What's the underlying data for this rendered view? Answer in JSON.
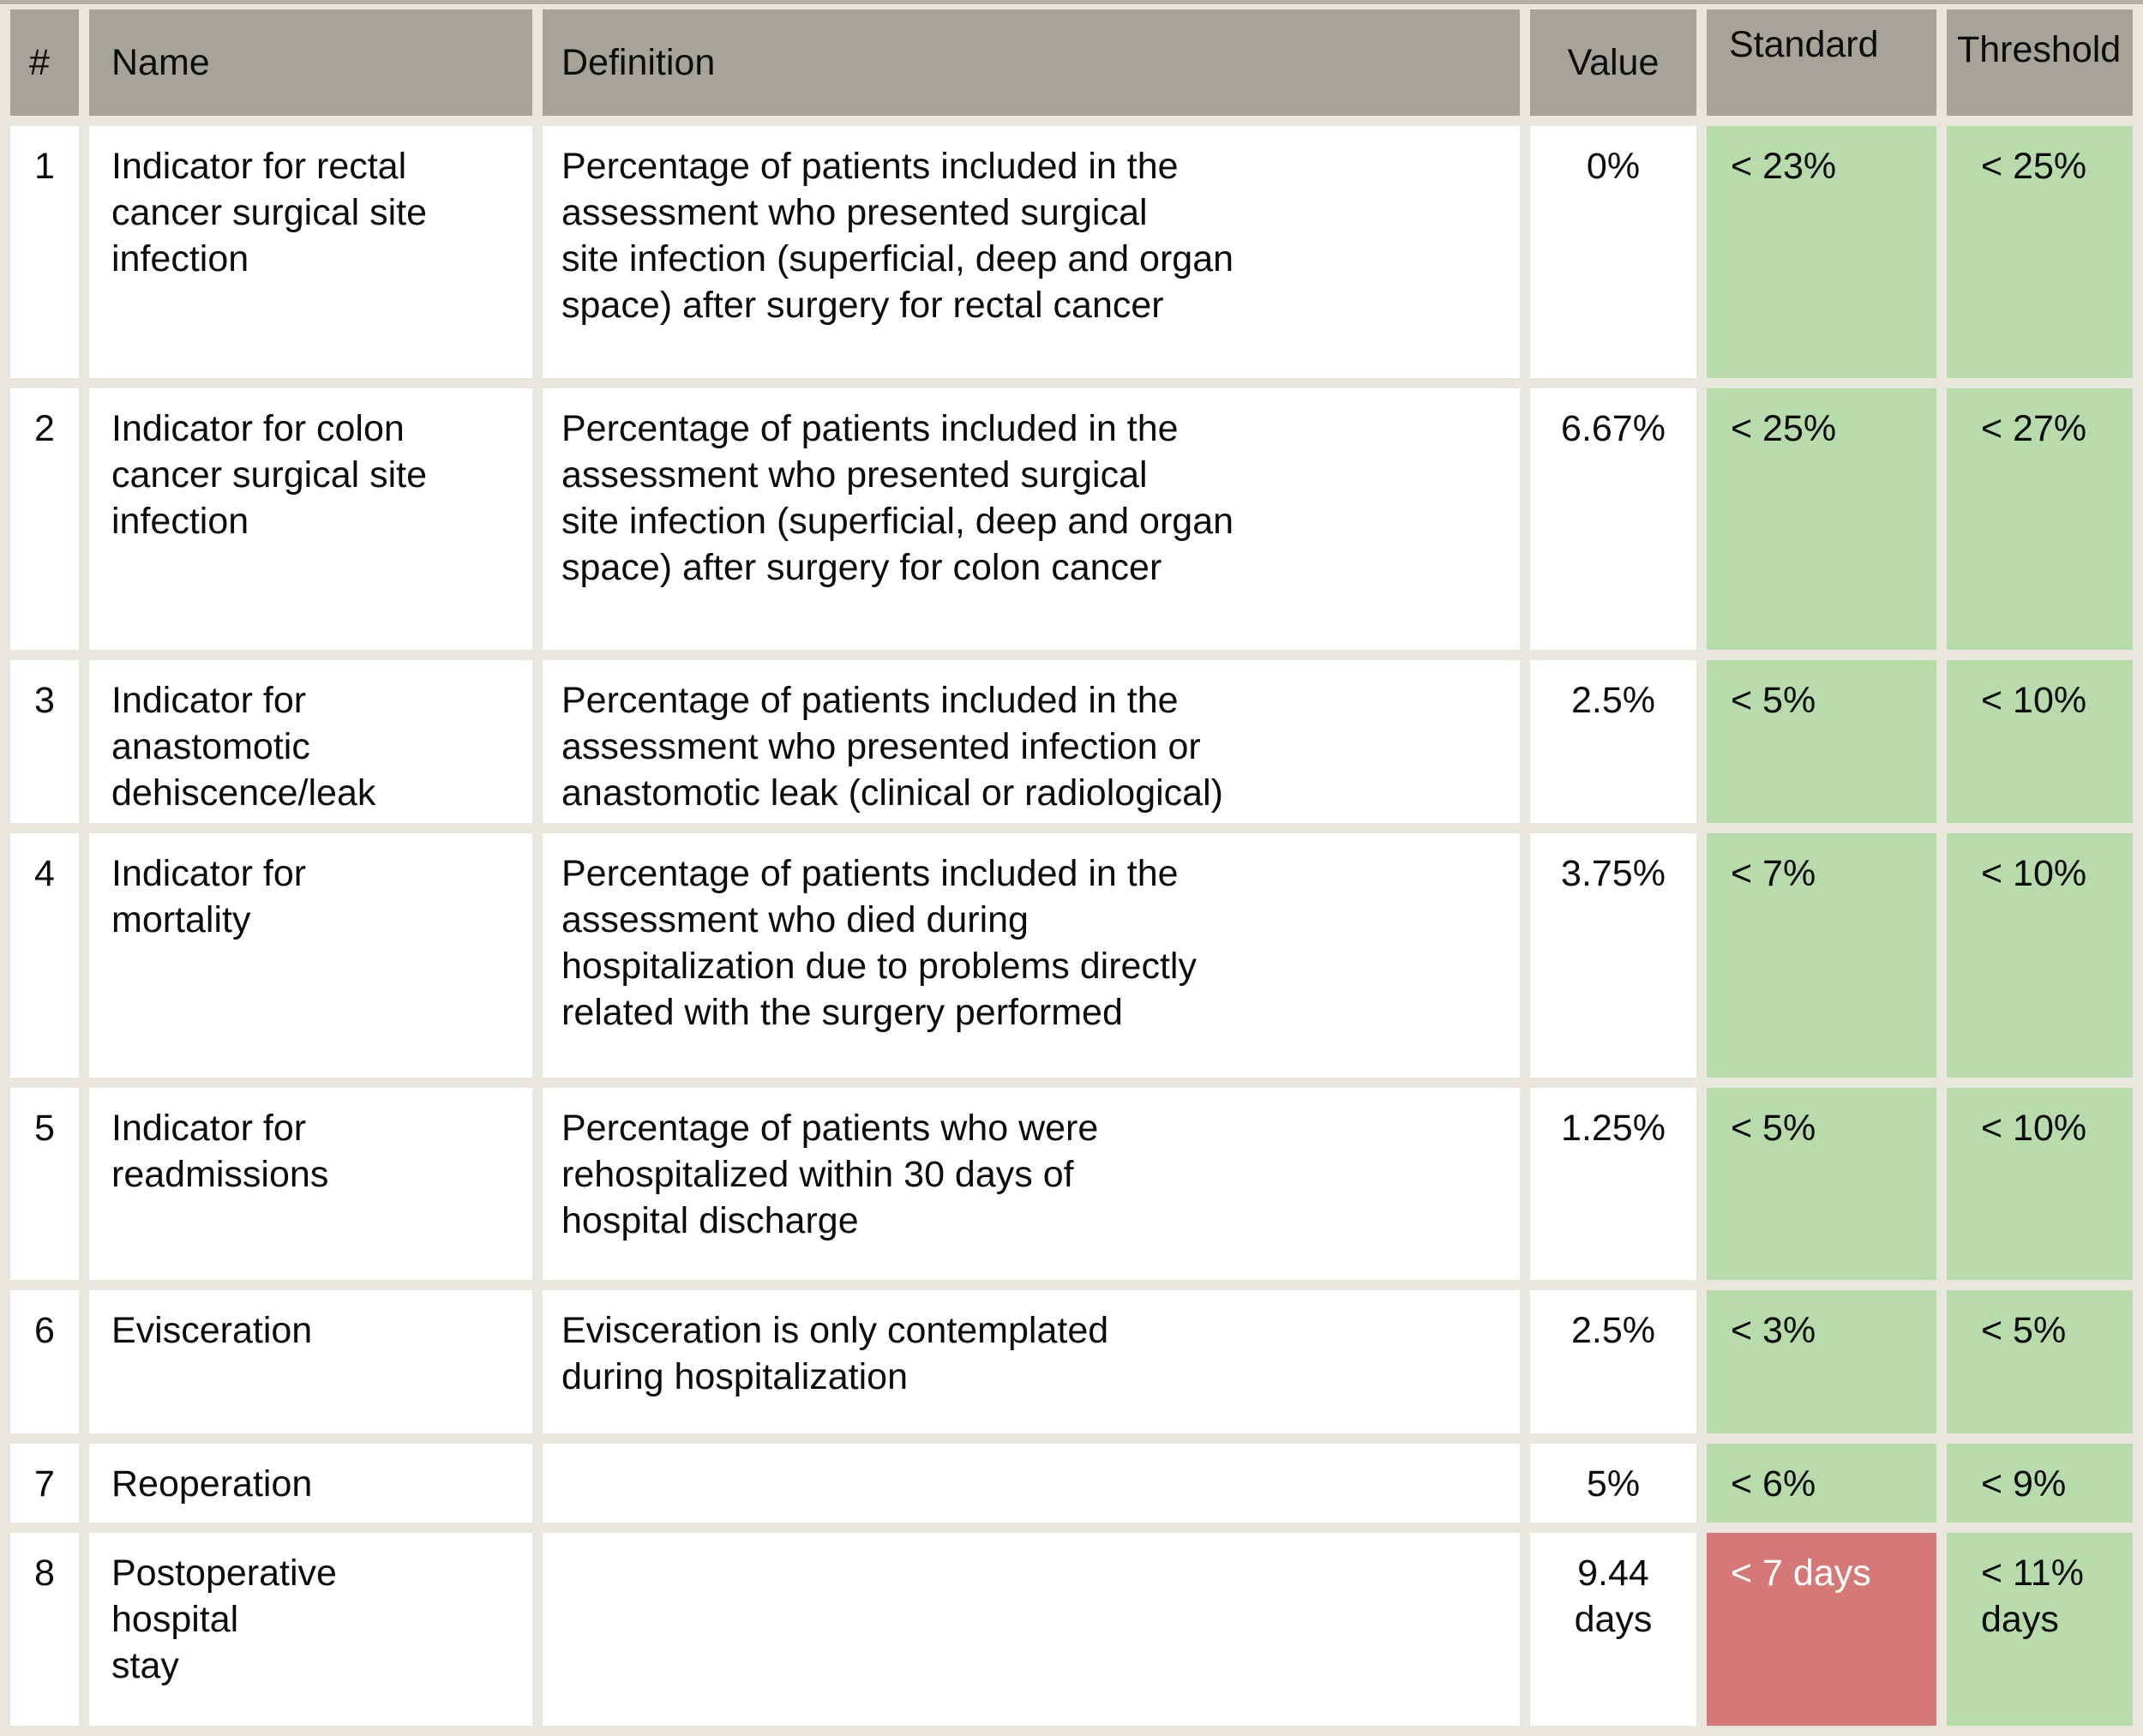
{
  "header": {
    "num": "#",
    "name": "Name",
    "definition": "Definition",
    "value": "Value",
    "standard": "Standard",
    "threshold": "Threshold"
  },
  "rows": [
    {
      "num": "1",
      "name": "Indicator for rectal\ncancer surgical site\ninfection",
      "definition": "Percentage of patients included in the\nassessment who presented surgical\nsite infection (superficial, deep and organ\nspace) after surgery for rectal cancer",
      "value": "0%",
      "standard": "< 23%",
      "threshold": "< 25%",
      "standard_status": "ok",
      "threshold_status": "ok"
    },
    {
      "num": "2",
      "name": "Indicator for colon\ncancer surgical site\ninfection",
      "definition": "Percentage of patients included in the\nassessment who presented surgical\nsite infection (superficial, deep and organ\nspace) after surgery for colon cancer",
      "value": "6.67%",
      "standard": "< 25%",
      "threshold": "< 27%",
      "standard_status": "ok",
      "threshold_status": "ok"
    },
    {
      "num": "3",
      "name": "Indicator for\nanastomotic\ndehiscence/leak",
      "definition": "Percentage of patients included in the\nassessment who presented infection or\nanastomotic leak (clinical or radiological)",
      "value": "2.5%",
      "standard": "< 5%",
      "threshold": "< 10%",
      "standard_status": "ok",
      "threshold_status": "ok"
    },
    {
      "num": "4",
      "name": "Indicator for\nmortality",
      "definition": "Percentage of patients included in the\nassessment who died during\nhospitalization due to problems directly\nrelated with the surgery performed",
      "value": "3.75%",
      "standard": "< 7%",
      "threshold": "< 10%",
      "standard_status": "ok",
      "threshold_status": "ok"
    },
    {
      "num": "5",
      "name": "Indicator for\nreadmissions",
      "definition": "Percentage of patients who were\nrehospitalized within 30 days of\nhospital discharge",
      "value": "1.25%",
      "standard": "< 5%",
      "threshold": "< 10%",
      "standard_status": "ok",
      "threshold_status": "ok"
    },
    {
      "num": "6",
      "name": "Evisceration",
      "definition": "Evisceration is only contemplated\nduring hospitalization",
      "value": "2.5%",
      "standard": "< 3%",
      "threshold": "< 5%",
      "standard_status": "ok",
      "threshold_status": "ok"
    },
    {
      "num": "7",
      "name": "Reoperation",
      "definition": "",
      "value": "5%",
      "standard": "< 6%",
      "threshold": "< 9%",
      "standard_status": "ok",
      "threshold_status": "ok"
    },
    {
      "num": "8",
      "name": "Postoperative\nhospital\nstay",
      "definition": "",
      "value": "9.44\ndays",
      "standard": "< 7 days",
      "threshold": "< 11%\ndays",
      "standard_status": "alert",
      "threshold_status": "ok"
    }
  ],
  "colors": {
    "green": "#b7dbaa",
    "red": "#d67878",
    "header_gray": "#a6a399",
    "page_background": "#e9e6de",
    "alert_text": "#ffffff"
  }
}
